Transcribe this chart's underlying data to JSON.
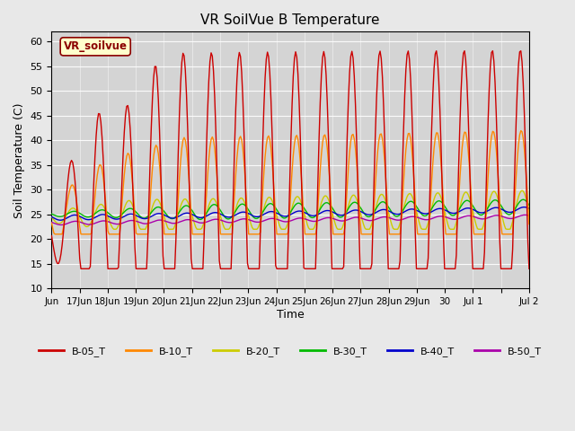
{
  "title": "VR SoilVue B Temperature",
  "ylabel": "Soil Temperature (C)",
  "xlabel": "Time",
  "ylim": [
    10,
    62
  ],
  "yticks": [
    10,
    15,
    20,
    25,
    30,
    35,
    40,
    45,
    50,
    55,
    60
  ],
  "background_color": "#e8e8e8",
  "plot_bg_color": "#d4d4d4",
  "watermark": "VR_soilvue",
  "series_colors": {
    "B-05_T": "#cc0000",
    "B-10_T": "#ff8800",
    "B-20_T": "#cccc00",
    "B-30_T": "#00bb00",
    "B-40_T": "#0000cc",
    "B-50_T": "#aa00aa"
  },
  "x_tick_positions": [
    0,
    1,
    2,
    3,
    4,
    5,
    6,
    7,
    8,
    9,
    10,
    11,
    12,
    13,
    14,
    15,
    16,
    17
  ],
  "x_tick_labels": [
    "Jun",
    "17Jun",
    "18Jun",
    "19Jun",
    "20Jun",
    "21Jun",
    "22Jun",
    "23Jun",
    "24Jun",
    "25Jun",
    "26Jun",
    "27Jun",
    "28Jun",
    "29Jun",
    "30",
    "Jul 1",
    "",
    "Jul 2"
  ],
  "legend_entries": [
    "B-05_T",
    "B-10_T",
    "B-20_T",
    "B-30_T",
    "B-40_T",
    "B-50_T"
  ]
}
